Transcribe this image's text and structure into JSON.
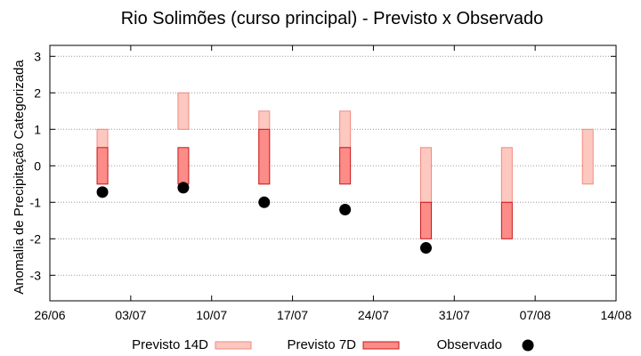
{
  "chart_data": {
    "type": "range-bar",
    "title": "Rio Solimões (curso principal) - Previsto x Observado",
    "xlabel": "",
    "ylabel": "Anomalia de Precipitação Categorizada",
    "x_tick_labels": [
      "26/06",
      "03/07",
      "10/07",
      "17/07",
      "24/07",
      "31/07",
      "07/08",
      "14/08"
    ],
    "y_ticks": [
      -3,
      -2,
      -1,
      0,
      1,
      2,
      3
    ],
    "ylim": [
      -3.7,
      3.3
    ],
    "grid": true,
    "legend_position": "bottom",
    "series": [
      {
        "name": "Previsto 14D",
        "color_fill": "#fcc8c0",
        "color_stroke": "#f08a80",
        "points": [
          {
            "week": 1,
            "low": -0.5,
            "high": 1.0
          },
          {
            "week": 2,
            "low": 1.0,
            "high": 2.0
          },
          {
            "week": 3,
            "low": -0.5,
            "high": 1.5
          },
          {
            "week": 4,
            "low": 0.5,
            "high": 1.5
          },
          {
            "week": 5,
            "low": -1.0,
            "high": 0.5
          },
          {
            "week": 6,
            "low": -1.0,
            "high": 0.5
          },
          {
            "week": 7,
            "low": -0.5,
            "high": 1.0
          }
        ]
      },
      {
        "name": "Previsto 7D",
        "color_fill": "#fc8c88",
        "color_stroke": "#c81818",
        "points": [
          {
            "week": 1,
            "low": -0.5,
            "high": 0.5
          },
          {
            "week": 2,
            "low": -0.5,
            "high": 0.5
          },
          {
            "week": 3,
            "low": -0.5,
            "high": 1.0
          },
          {
            "week": 4,
            "low": -0.5,
            "high": 0.5
          },
          {
            "week": 5,
            "low": -2.0,
            "high": -1.0
          },
          {
            "week": 6,
            "low": -2.0,
            "high": -1.0
          }
        ]
      },
      {
        "name": "Observado",
        "color": "#000000",
        "points": [
          {
            "week": 1,
            "value": -0.72
          },
          {
            "week": 2,
            "value": -0.6
          },
          {
            "week": 3,
            "value": -1.0
          },
          {
            "week": 4,
            "value": -1.2
          },
          {
            "week": 5,
            "value": -2.25
          }
        ]
      }
    ]
  }
}
